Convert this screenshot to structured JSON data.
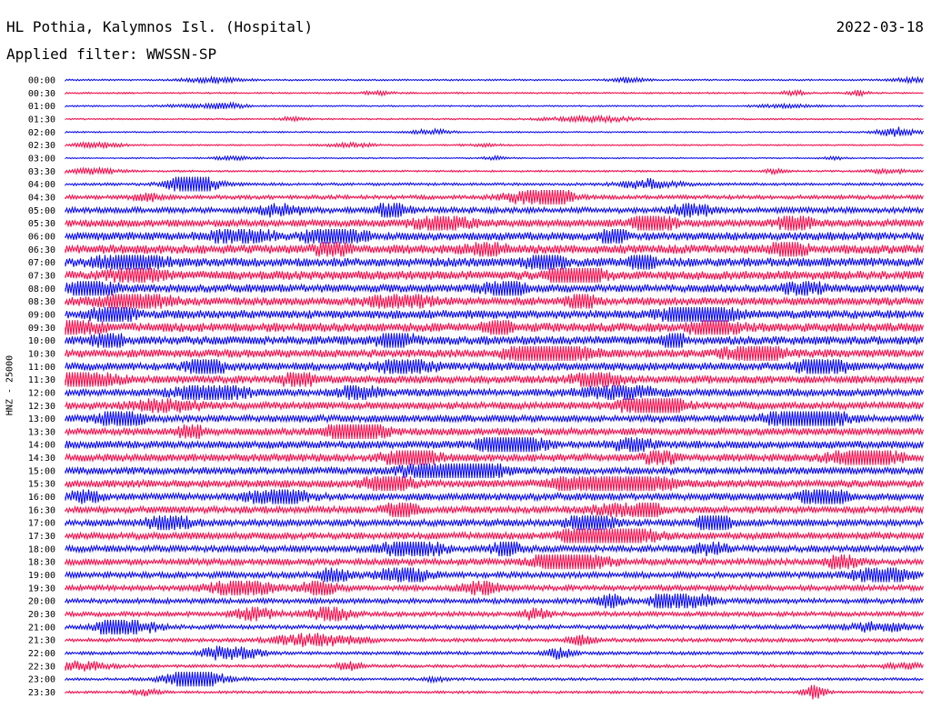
{
  "header": {
    "station": "HL Pothia, Kalymnos Isl. (Hospital)",
    "date": "2022-03-18",
    "filter": "Applied filter: WWSSN-SP",
    "channel_label": "HNZ - 25000"
  },
  "chart_data": {
    "type": "line",
    "title": "HL Pothia, Kalymnos Isl. (Hospital)",
    "subtitle": "Applied filter: WWSSN-SP",
    "ylabel": "HNZ - 25000",
    "grid": false,
    "colors": [
      "#0000ff",
      "#ff0044"
    ],
    "rows": [
      {
        "label": "00:00",
        "amp": 0.9
      },
      {
        "label": "00:30",
        "amp": 0.9
      },
      {
        "label": "01:00",
        "amp": 0.8
      },
      {
        "label": "01:30",
        "amp": 0.8
      },
      {
        "label": "02:00",
        "amp": 0.8
      },
      {
        "label": "02:30",
        "amp": 0.8
      },
      {
        "label": "03:00",
        "amp": 0.7
      },
      {
        "label": "03:30",
        "amp": 1.0
      },
      {
        "label": "04:00",
        "amp": 1.5
      },
      {
        "label": "04:30",
        "amp": 2.2
      },
      {
        "label": "05:00",
        "amp": 3.2
      },
      {
        "label": "05:30",
        "amp": 4.0
      },
      {
        "label": "06:00",
        "amp": 4.5
      },
      {
        "label": "06:30",
        "amp": 5.0
      },
      {
        "label": "07:00",
        "amp": 5.0
      },
      {
        "label": "07:30",
        "amp": 5.0
      },
      {
        "label": "08:00",
        "amp": 4.5
      },
      {
        "label": "08:30",
        "amp": 4.5
      },
      {
        "label": "09:00",
        "amp": 4.8
      },
      {
        "label": "09:30",
        "amp": 5.0
      },
      {
        "label": "10:00",
        "amp": 4.8
      },
      {
        "label": "10:30",
        "amp": 4.5
      },
      {
        "label": "11:00",
        "amp": 4.5
      },
      {
        "label": "11:30",
        "amp": 4.3
      },
      {
        "label": "12:00",
        "amp": 4.2
      },
      {
        "label": "12:30",
        "amp": 4.0
      },
      {
        "label": "13:00",
        "amp": 4.0
      },
      {
        "label": "13:30",
        "amp": 4.0
      },
      {
        "label": "14:00",
        "amp": 4.2
      },
      {
        "label": "14:30",
        "amp": 4.2
      },
      {
        "label": "15:00",
        "amp": 4.0
      },
      {
        "label": "15:30",
        "amp": 4.2
      },
      {
        "label": "16:00",
        "amp": 4.0
      },
      {
        "label": "16:30",
        "amp": 3.8
      },
      {
        "label": "17:00",
        "amp": 3.8
      },
      {
        "label": "17:30",
        "amp": 3.8
      },
      {
        "label": "18:00",
        "amp": 3.6
      },
      {
        "label": "18:30",
        "amp": 3.5
      },
      {
        "label": "19:00",
        "amp": 3.3
      },
      {
        "label": "19:30",
        "amp": 3.0
      },
      {
        "label": "20:00",
        "amp": 2.8
      },
      {
        "label": "20:30",
        "amp": 2.6
      },
      {
        "label": "21:00",
        "amp": 2.4
      },
      {
        "label": "21:30",
        "amp": 2.1
      },
      {
        "label": "22:00",
        "amp": 1.8
      },
      {
        "label": "22:30",
        "amp": 1.7
      },
      {
        "label": "23:00",
        "amp": 1.5
      },
      {
        "label": "23:30",
        "amp": 1.4
      }
    ]
  }
}
